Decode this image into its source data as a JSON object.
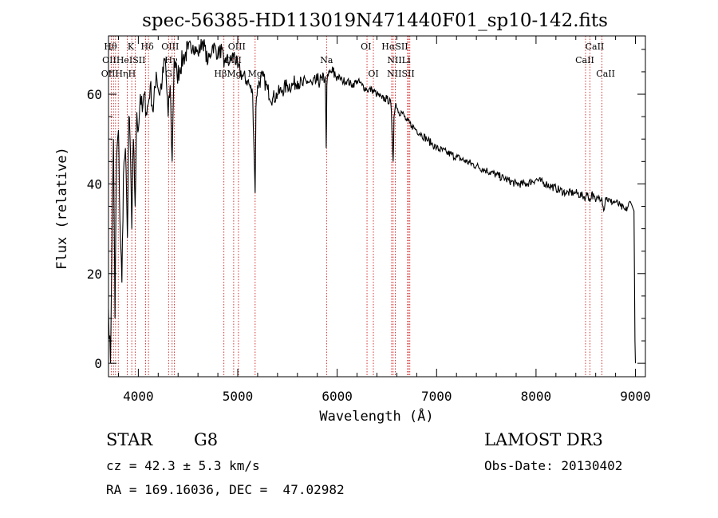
{
  "colors": {
    "spectrum": "#000000",
    "line_marker": "#cc0000",
    "axes": "#000000",
    "background": "#ffffff"
  },
  "chart_data": {
    "type": "line",
    "title": "spec-56385-HD113019N471440F01_sp10-142.fits",
    "xlabel": "Wavelength (Å)",
    "ylabel": "Flux (relative)",
    "xlim": [
      3700,
      9100
    ],
    "ylim": [
      -3,
      73
    ],
    "xticks": [
      4000,
      5000,
      6000,
      7000,
      8000,
      9000
    ],
    "yticks": [
      0,
      20,
      40,
      60
    ],
    "series": [
      {
        "name": "spectrum",
        "x": [
          3700,
          3720,
          3735,
          3750,
          3765,
          3780,
          3800,
          3815,
          3835,
          3850,
          3870,
          3890,
          3905,
          3920,
          3934,
          3950,
          3968,
          3985,
          4000,
          4020,
          4040,
          4060,
          4080,
          4101,
          4120,
          4150,
          4180,
          4210,
          4240,
          4270,
          4300,
          4320,
          4340,
          4360,
          4390,
          4420,
          4450,
          4500,
          4550,
          4600,
          4650,
          4700,
          4750,
          4800,
          4840,
          4861,
          4880,
          4920,
          4960,
          5000,
          5050,
          5100,
          5150,
          5175,
          5183,
          5200,
          5250,
          5300,
          5350,
          5400,
          5450,
          5500,
          5550,
          5600,
          5650,
          5700,
          5750,
          5800,
          5850,
          5880,
          5890,
          5896,
          5910,
          5940,
          6000,
          6050,
          6100,
          6150,
          6200,
          6250,
          6300,
          6350,
          6400,
          6450,
          6500,
          6540,
          6555,
          6563,
          6572,
          6590,
          6620,
          6650,
          6700,
          6750,
          6800,
          6850,
          6900,
          6950,
          7000,
          7100,
          7200,
          7300,
          7400,
          7500,
          7600,
          7700,
          7800,
          7900,
          8000,
          8100,
          8200,
          8300,
          8400,
          8498,
          8520,
          8542,
          8560,
          8600,
          8620,
          8662,
          8680,
          8700,
          8750,
          8800,
          8850,
          8900,
          8950,
          8985,
          8995,
          9000
        ],
        "y": [
          12,
          0,
          28,
          50,
          10,
          45,
          52,
          32,
          18,
          42,
          48,
          28,
          55,
          48,
          30,
          50,
          35,
          56,
          52,
          60,
          56,
          60,
          56,
          58,
          62,
          56,
          65,
          60,
          63,
          68,
          55,
          62,
          45,
          68,
          64,
          66,
          68,
          70,
          71,
          69,
          72,
          67,
          71,
          69,
          70,
          66,
          68,
          67,
          69,
          66,
          64,
          63,
          60,
          38,
          57,
          62,
          64,
          61,
          59,
          60,
          61,
          62,
          62,
          63,
          62,
          63,
          62,
          63,
          63,
          64,
          48,
          62,
          64,
          65,
          64,
          63,
          63,
          62,
          63,
          62,
          61,
          61,
          60,
          59,
          59,
          58,
          50,
          45,
          55,
          58,
          56,
          56,
          54,
          53,
          52,
          51,
          50,
          49,
          48,
          47,
          46,
          45,
          44,
          43,
          42,
          41,
          40,
          40,
          41,
          40,
          39,
          38,
          38,
          37,
          38,
          36,
          38,
          36,
          37,
          37,
          34,
          37,
          36,
          36,
          35,
          34,
          36,
          34,
          5,
          0
        ]
      }
    ],
    "line_markers": [
      {
        "wavelength": 3750,
        "label": "Hθ"
      },
      {
        "wavelength": 3727,
        "label": "OII"
      },
      {
        "wavelength": 3771,
        "label": "Hη"
      },
      {
        "wavelength": 3798,
        "label": "Hζ"
      },
      {
        "wavelength": 3889,
        "label": "HeI"
      },
      {
        "wavelength": 3934,
        "label": "K"
      },
      {
        "wavelength": 3968,
        "label": "H"
      },
      {
        "wavelength": 4072,
        "label": "SII"
      },
      {
        "wavelength": 4102,
        "label": "Hδ"
      },
      {
        "wavelength": 4304,
        "label": "G"
      },
      {
        "wavelength": 4340,
        "label": "Hγ"
      },
      {
        "wavelength": 4363,
        "label": "OIII"
      },
      {
        "wavelength": 4861,
        "label": "Hβ"
      },
      {
        "wavelength": 4959,
        "label": "OIII"
      },
      {
        "wavelength": 5007,
        "label": "OIII"
      },
      {
        "wavelength": 5175,
        "label": "Mg"
      },
      {
        "wavelength": 5893,
        "label": "Na"
      },
      {
        "wavelength": 6300,
        "label": "OI"
      },
      {
        "wavelength": 6364,
        "label": "OI"
      },
      {
        "wavelength": 6548,
        "label": "NII"
      },
      {
        "wavelength": 6563,
        "label": "Hα"
      },
      {
        "wavelength": 6584,
        "label": "NII"
      },
      {
        "wavelength": 6708,
        "label": "Li"
      },
      {
        "wavelength": 6717,
        "label": "SII"
      },
      {
        "wavelength": 6731,
        "label": "SII"
      },
      {
        "wavelength": 8498,
        "label": "CaII"
      },
      {
        "wavelength": 8542,
        "label": "CaII"
      },
      {
        "wavelength": 8662,
        "label": "CaII"
      }
    ],
    "line_labels": [
      {
        "text": "Hθ",
        "wavelength": 3720,
        "row": 1
      },
      {
        "text": "K",
        "wavelength": 3925,
        "row": 1
      },
      {
        "text": "Hδ",
        "wavelength": 4090,
        "row": 1
      },
      {
        "text": "OIII",
        "wavelength": 4320,
        "row": 1
      },
      {
        "text": "OIII",
        "wavelength": 4990,
        "row": 1
      },
      {
        "text": "OI",
        "wavelength": 6290,
        "row": 1
      },
      {
        "text": "HαSII",
        "wavelength": 6580,
        "row": 1
      },
      {
        "text": "CaII",
        "wavelength": 8590,
        "row": 1
      },
      {
        "text": "OIIHeISII",
        "wavelength": 3855,
        "row": 2
      },
      {
        "text": "Hγ",
        "wavelength": 4330,
        "row": 2
      },
      {
        "text": "OIII",
        "wavelength": 4950,
        "row": 2
      },
      {
        "text": "Na",
        "wavelength": 5893,
        "row": 2
      },
      {
        "text": "NIILi",
        "wavelength": 6620,
        "row": 2
      },
      {
        "text": "CaII",
        "wavelength": 8490,
        "row": 2
      },
      {
        "text": "OIIHηH",
        "wavelength": 3800,
        "row": 3
      },
      {
        "text": "G",
        "wavelength": 4304,
        "row": 3
      },
      {
        "text": "HβMg",
        "wavelength": 4900,
        "row": 3
      },
      {
        "text": "Mg",
        "wavelength": 5175,
        "row": 3
      },
      {
        "text": "OI",
        "wavelength": 6364,
        "row": 3
      },
      {
        "text": "NIISII",
        "wavelength": 6640,
        "row": 3
      },
      {
        "text": "CaII",
        "wavelength": 8700,
        "row": 3
      }
    ]
  },
  "info": {
    "object_class": "STAR",
    "subclass": "G8",
    "survey": "LAMOST DR3",
    "redshift_line": "cz = 42.3 ± 5.3 km/s",
    "obs_date": "Obs-Date: 20130402",
    "coordinates": "RA = 169.16036, DEC =  47.02982"
  }
}
